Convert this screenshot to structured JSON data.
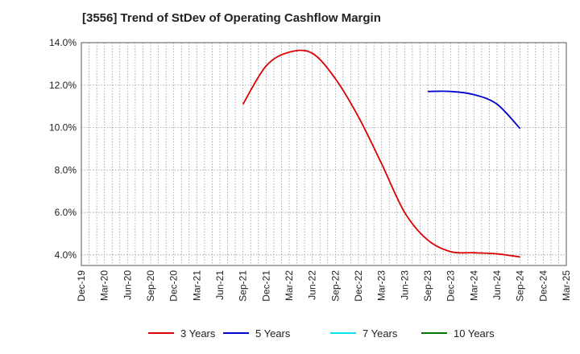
{
  "chart_data": {
    "type": "line",
    "title": "[3556]  Trend of StDev of Operating Cashflow Margin",
    "xlabel": "",
    "ylabel": "",
    "ylim": [
      3.5,
      14.0
    ],
    "yticks": [
      "4.0%",
      "6.0%",
      "8.0%",
      "10.0%",
      "12.0%",
      "14.0%"
    ],
    "ytick_values": [
      4,
      6,
      8,
      10,
      12,
      14
    ],
    "x_tick_labels": [
      "Dec-19",
      "Mar-20",
      "Jun-20",
      "Sep-20",
      "Dec-20",
      "Mar-21",
      "Jun-21",
      "Sep-21",
      "Dec-21",
      "Mar-22",
      "Jun-22",
      "Sep-22",
      "Dec-22",
      "Mar-23",
      "Jun-23",
      "Sep-23",
      "Dec-23",
      "Mar-24",
      "Jun-24",
      "Sep-24",
      "Dec-24",
      "Mar-25"
    ],
    "grid": true,
    "legend_position": "bottom",
    "series": [
      {
        "name": "3 Years",
        "color": "#dd0000",
        "points": [
          [
            "Sep-21",
            11.1
          ],
          [
            "Dec-21",
            12.9
          ],
          [
            "Mar-22",
            13.55
          ],
          [
            "Jun-22",
            13.5
          ],
          [
            "Sep-22",
            12.3
          ],
          [
            "Dec-22",
            10.5
          ],
          [
            "Mar-23",
            8.3
          ],
          [
            "Jun-23",
            6.0
          ],
          [
            "Sep-23",
            4.7
          ],
          [
            "Dec-23",
            4.15
          ],
          [
            "Mar-24",
            4.1
          ],
          [
            "Jun-24",
            4.05
          ],
          [
            "Sep-24",
            3.9
          ]
        ]
      },
      {
        "name": "5 Years",
        "color": "#0000cc",
        "points": [
          [
            "Sep-23",
            11.7
          ],
          [
            "Dec-23",
            11.7
          ],
          [
            "Mar-24",
            11.55
          ],
          [
            "Jun-24",
            11.1
          ],
          [
            "Sep-24",
            9.95
          ]
        ]
      },
      {
        "name": "7 Years",
        "color": "#00e5ee",
        "points": []
      },
      {
        "name": "10 Years",
        "color": "#007700",
        "points": []
      }
    ]
  }
}
